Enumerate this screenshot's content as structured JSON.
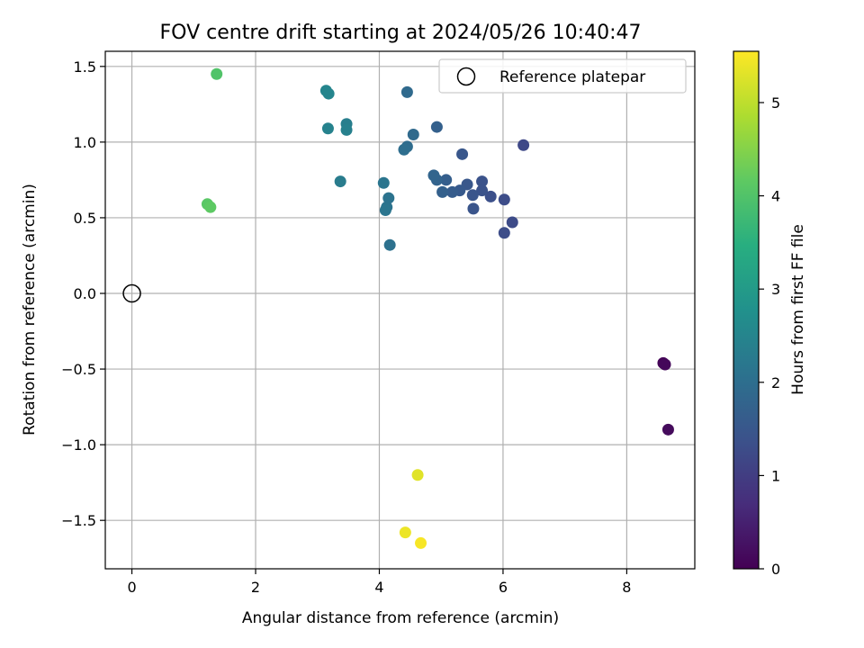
{
  "chart_data": {
    "type": "scatter",
    "title": "FOV centre drift starting at 2024/05/26 10:40:47",
    "xlabel": "Angular distance from reference (arcmin)",
    "ylabel": "Rotation from reference (arcmin)",
    "xlim": [
      -0.43,
      9.1
    ],
    "ylim": [
      -1.82,
      1.6
    ],
    "xticks": [
      0,
      2,
      4,
      6,
      8
    ],
    "yticks": [
      -1.5,
      -1.0,
      -0.5,
      0.0,
      0.5,
      1.0,
      1.5
    ],
    "xtick_labels": [
      "0",
      "2",
      "4",
      "6",
      "8"
    ],
    "ytick_labels": [
      "−1.5",
      "−1.0",
      "−0.5",
      "0.0",
      "0.5",
      "1.0",
      "1.5"
    ],
    "grid": true,
    "legend": {
      "position": "top-right",
      "entries": [
        "Reference platepar"
      ]
    },
    "reference_point": {
      "x": 0,
      "y": 0
    },
    "colorbar": {
      "label": "Hours from first FF file",
      "range": [
        0,
        5.55
      ],
      "ticks": [
        0,
        1,
        2,
        3,
        4,
        5
      ],
      "tick_labels": [
        "0",
        "1",
        "2",
        "3",
        "4",
        "5"
      ],
      "colormap": "viridis"
    },
    "points": [
      {
        "x": 8.59,
        "y": -0.46,
        "c": 0.05
      },
      {
        "x": 8.62,
        "y": -0.47,
        "c": 0.1
      },
      {
        "x": 8.67,
        "y": -0.9,
        "c": 0.15
      },
      {
        "x": 6.33,
        "y": 0.98,
        "c": 1.2
      },
      {
        "x": 6.15,
        "y": 0.47,
        "c": 1.25
      },
      {
        "x": 6.02,
        "y": 0.62,
        "c": 1.3
      },
      {
        "x": 6.02,
        "y": 0.4,
        "c": 1.3
      },
      {
        "x": 5.8,
        "y": 0.64,
        "c": 1.35
      },
      {
        "x": 5.66,
        "y": 0.74,
        "c": 1.4
      },
      {
        "x": 5.66,
        "y": 0.68,
        "c": 1.4
      },
      {
        "x": 5.52,
        "y": 0.56,
        "c": 1.45
      },
      {
        "x": 5.51,
        "y": 0.65,
        "c": 1.45
      },
      {
        "x": 5.42,
        "y": 0.72,
        "c": 1.5
      },
      {
        "x": 5.34,
        "y": 0.92,
        "c": 1.5
      },
      {
        "x": 5.3,
        "y": 0.68,
        "c": 1.55
      },
      {
        "x": 5.18,
        "y": 0.67,
        "c": 1.6
      },
      {
        "x": 5.08,
        "y": 0.75,
        "c": 1.65
      },
      {
        "x": 5.02,
        "y": 0.67,
        "c": 1.7
      },
      {
        "x": 4.93,
        "y": 0.75,
        "c": 1.75
      },
      {
        "x": 4.93,
        "y": 1.1,
        "c": 1.7
      },
      {
        "x": 4.88,
        "y": 0.78,
        "c": 1.8
      },
      {
        "x": 4.55,
        "y": 1.05,
        "c": 1.9
      },
      {
        "x": 4.45,
        "y": 1.33,
        "c": 1.9
      },
      {
        "x": 4.45,
        "y": 0.97,
        "c": 1.95
      },
      {
        "x": 4.4,
        "y": 0.95,
        "c": 2.0
      },
      {
        "x": 4.17,
        "y": 0.32,
        "c": 2.05
      },
      {
        "x": 4.15,
        "y": 0.63,
        "c": 2.1
      },
      {
        "x": 4.12,
        "y": 0.57,
        "c": 2.1
      },
      {
        "x": 4.1,
        "y": 0.55,
        "c": 2.15
      },
      {
        "x": 4.07,
        "y": 0.73,
        "c": 2.15
      },
      {
        "x": 3.37,
        "y": 0.74,
        "c": 2.3
      },
      {
        "x": 3.47,
        "y": 1.12,
        "c": 2.35
      },
      {
        "x": 3.47,
        "y": 1.08,
        "c": 2.4
      },
      {
        "x": 3.17,
        "y": 1.09,
        "c": 2.45
      },
      {
        "x": 3.18,
        "y": 1.32,
        "c": 2.5
      },
      {
        "x": 3.14,
        "y": 1.34,
        "c": 2.5
      },
      {
        "x": 1.37,
        "y": 1.45,
        "c": 4.0
      },
      {
        "x": 1.22,
        "y": 0.59,
        "c": 4.1
      },
      {
        "x": 1.27,
        "y": 0.57,
        "c": 4.15
      },
      {
        "x": 4.62,
        "y": -1.2,
        "c": 5.3
      },
      {
        "x": 4.42,
        "y": -1.58,
        "c": 5.4
      },
      {
        "x": 4.67,
        "y": -1.65,
        "c": 5.5
      }
    ]
  }
}
